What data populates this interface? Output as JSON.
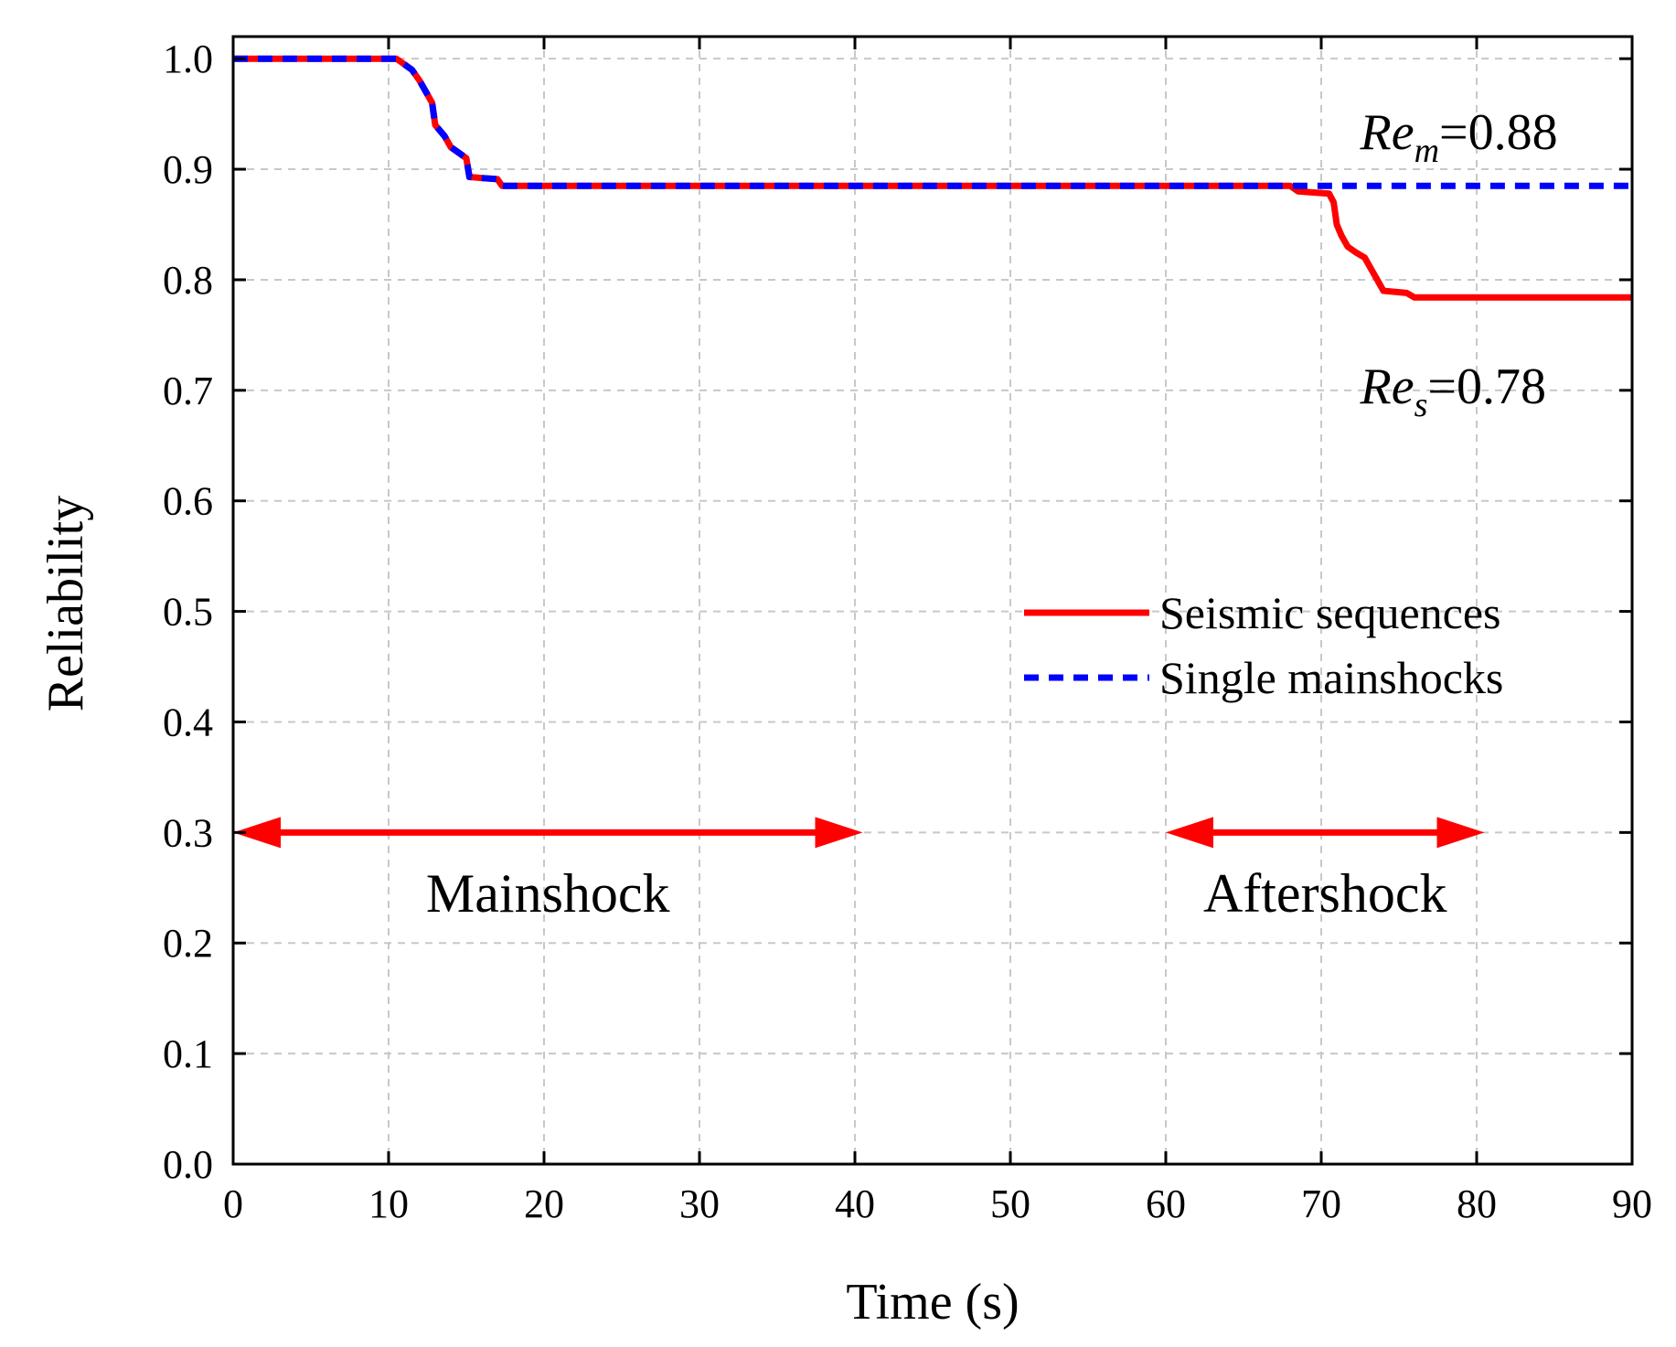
{
  "chart_data": {
    "type": "line",
    "title": "",
    "xlabel": "Time (s)",
    "ylabel": "Reliability",
    "xlim": [
      0,
      90
    ],
    "ylim": [
      0.0,
      1.02
    ],
    "xticks": [
      0,
      10,
      20,
      30,
      40,
      50,
      60,
      70,
      80,
      90
    ],
    "xtick_labels": [
      "0",
      "10",
      "20",
      "30",
      "40",
      "50",
      "60",
      "70",
      "80",
      "90"
    ],
    "yticks": [
      0.0,
      0.1,
      0.2,
      0.3,
      0.4,
      0.5,
      0.6,
      0.7,
      0.8,
      0.9,
      1.0
    ],
    "ytick_labels": [
      "0.0",
      "0.1",
      "0.2",
      "0.3",
      "0.4",
      "0.5",
      "0.6",
      "0.7",
      "0.8",
      "0.9",
      "1.0"
    ],
    "grid": true,
    "legend_position": "center-right",
    "series": [
      {
        "name": "Seismic sequences",
        "color": "#ff0000",
        "style": "solid",
        "x": [
          0,
          10.5,
          11,
          11.5,
          12,
          12.4,
          12.8,
          13,
          13.3,
          13.6,
          14,
          14.5,
          15,
          15.2,
          16,
          17,
          17.3,
          68,
          68.5,
          70.5,
          70.8,
          71,
          71.3,
          71.7,
          72.2,
          72.8,
          73.2,
          73.6,
          74,
          75.5,
          76,
          90
        ],
        "y": [
          1.0,
          1.0,
          0.995,
          0.99,
          0.98,
          0.97,
          0.96,
          0.94,
          0.935,
          0.93,
          0.92,
          0.915,
          0.91,
          0.893,
          0.892,
          0.891,
          0.885,
          0.885,
          0.88,
          0.878,
          0.87,
          0.85,
          0.84,
          0.83,
          0.825,
          0.82,
          0.81,
          0.8,
          0.79,
          0.788,
          0.784,
          0.784
        ]
      },
      {
        "name": "Single mainshocks",
        "color": "#0000ff",
        "style": "dashed",
        "x": [
          0,
          10.5,
          11,
          11.5,
          12,
          12.4,
          12.8,
          13,
          13.3,
          13.6,
          14,
          14.5,
          15,
          15.2,
          16,
          17,
          17.3,
          90
        ],
        "y": [
          1.0,
          1.0,
          0.995,
          0.99,
          0.98,
          0.97,
          0.96,
          0.94,
          0.935,
          0.93,
          0.92,
          0.915,
          0.91,
          0.893,
          0.892,
          0.891,
          0.885,
          0.885
        ]
      }
    ],
    "annotations": {
      "re_m": {
        "main": "Re",
        "sub": "m",
        "value": "=0.88",
        "x": 72.5,
        "y": 0.935
      },
      "re_s": {
        "main": "Re",
        "sub": "s",
        "value": "=0.78",
        "x": 72.5,
        "y": 0.705
      }
    },
    "phases": [
      {
        "label": "Mainshock",
        "x_start": 0,
        "x_end": 40.5,
        "y": 0.3,
        "label_y": 0.245,
        "color": "#ff0000"
      },
      {
        "label": "Aftershock",
        "x_start": 60,
        "x_end": 80.5,
        "y": 0.3,
        "label_y": 0.245,
        "color": "#ff0000"
      }
    ]
  }
}
